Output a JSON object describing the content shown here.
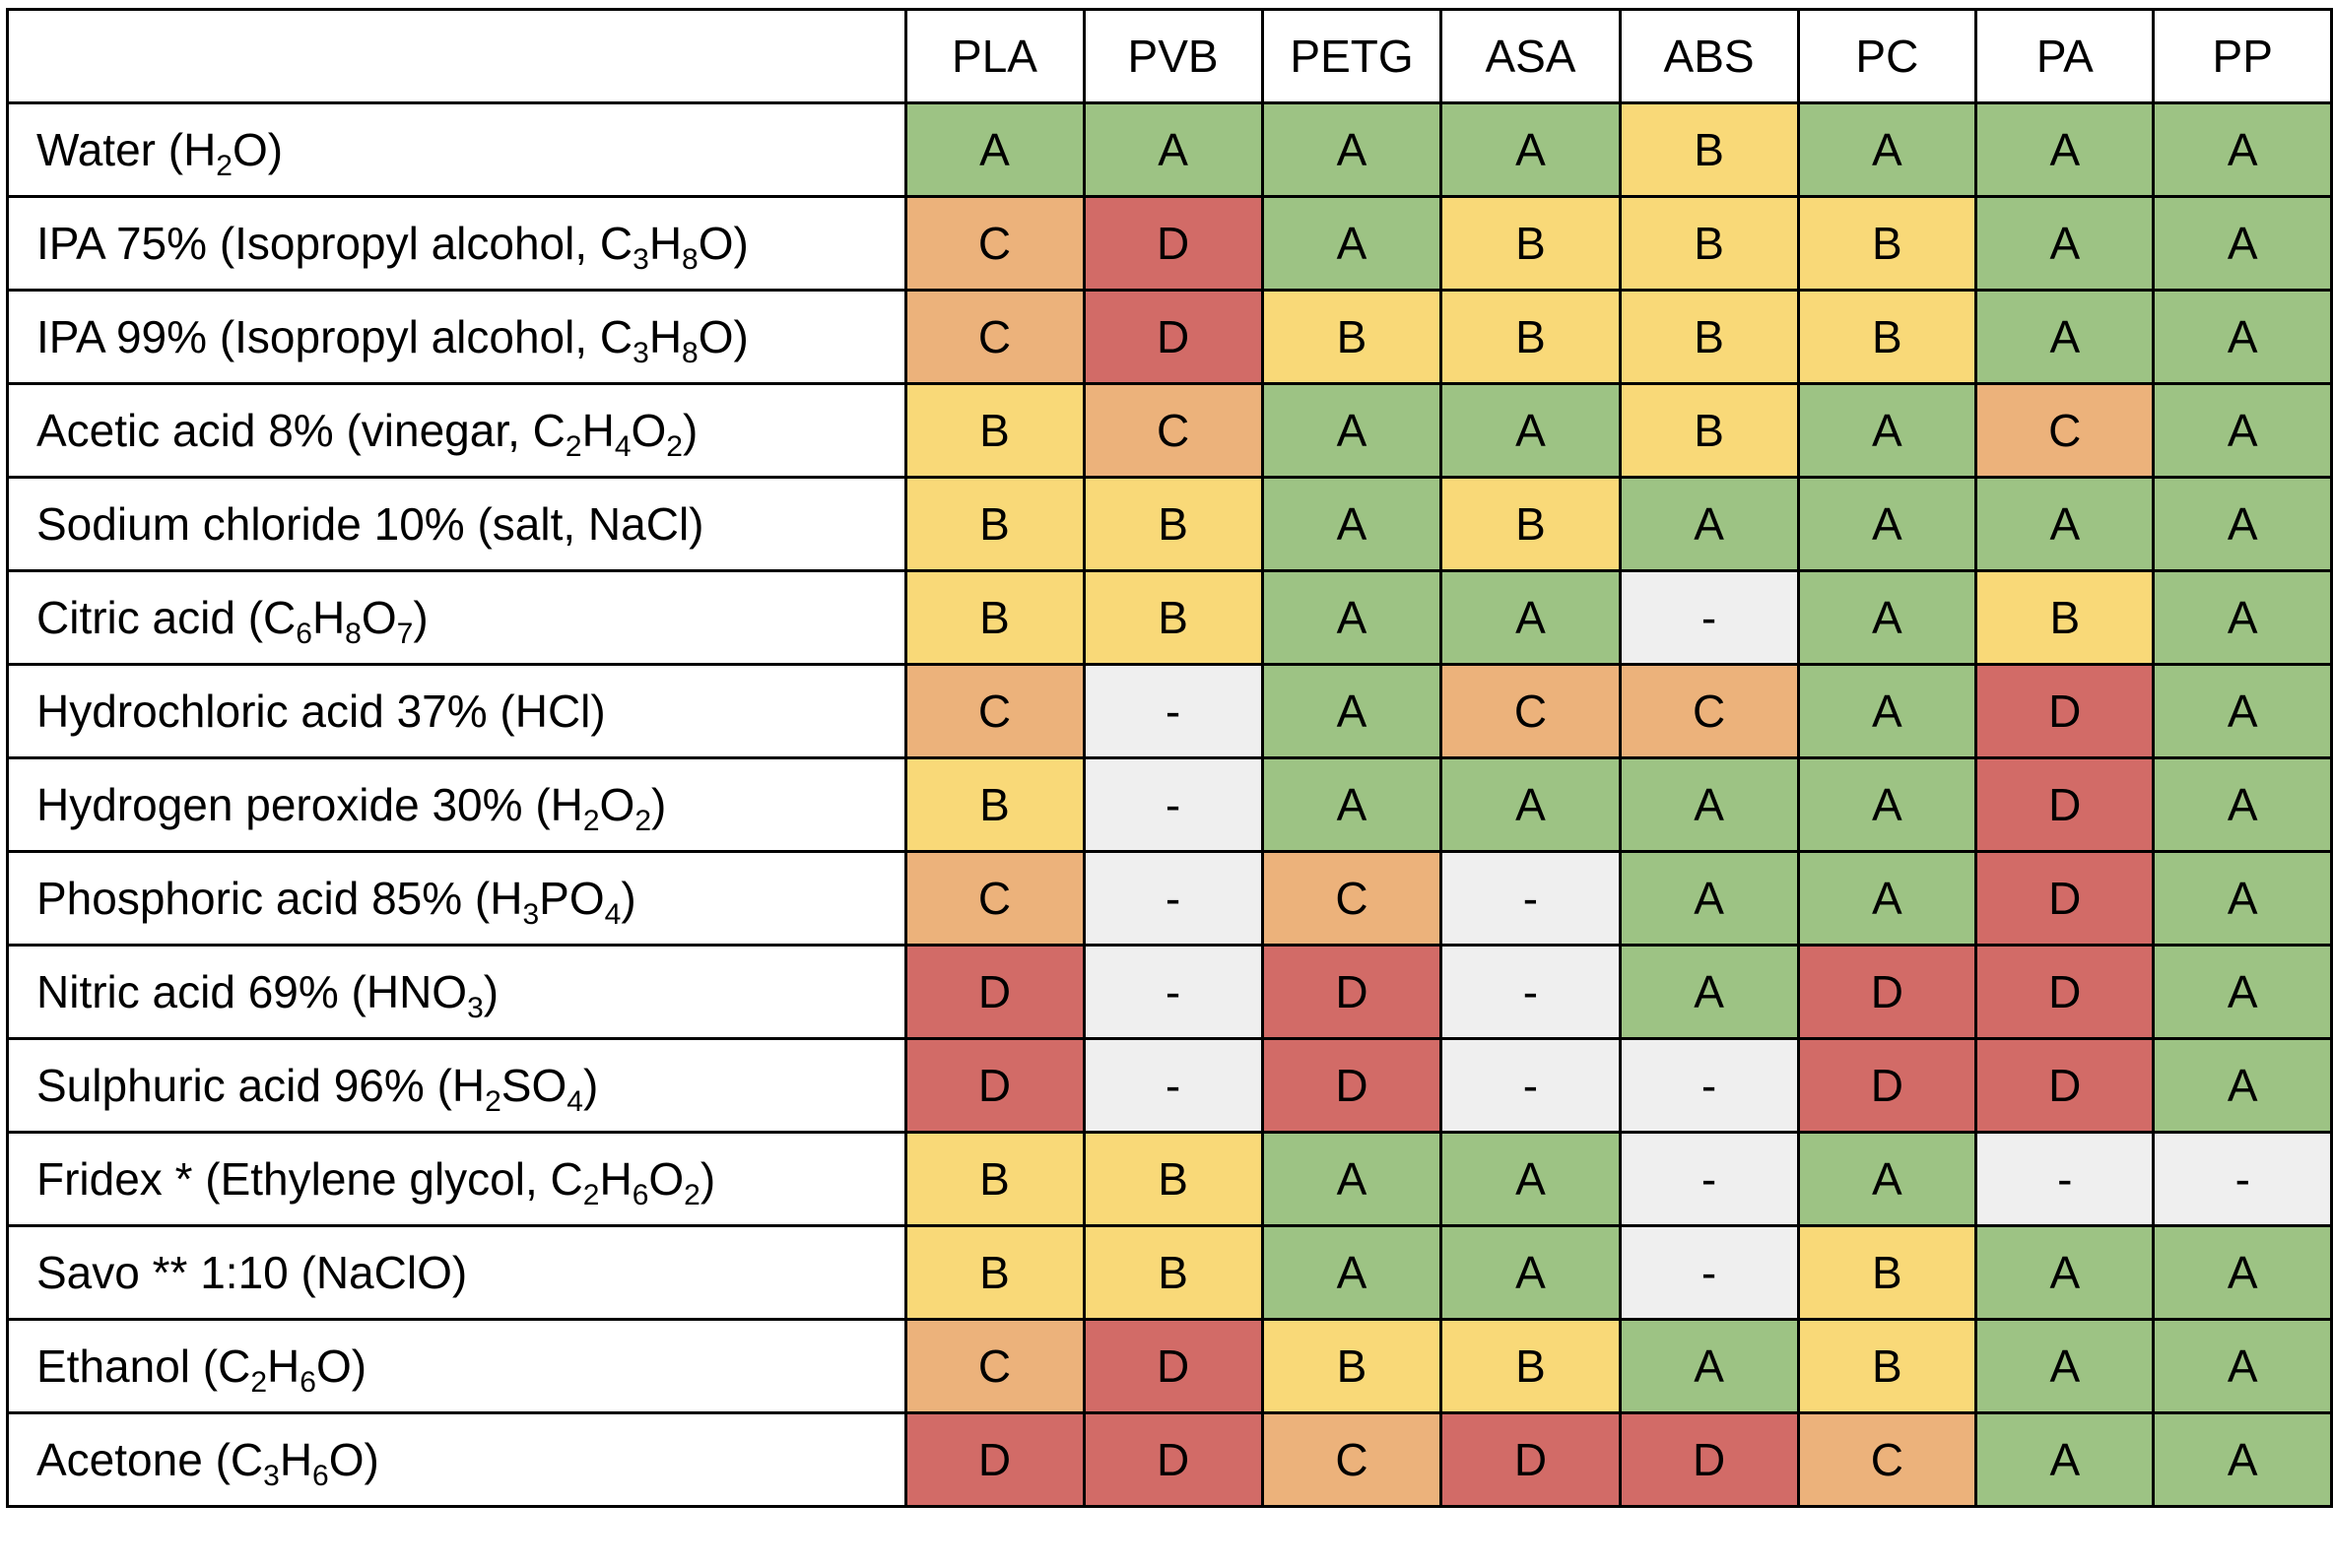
{
  "table": {
    "grade_colors": {
      "A": "#9dc384",
      "B": "#f9d978",
      "C": "#ecb27b",
      "D": "#d26b67",
      "-": "#efefef"
    },
    "header": [
      "PLA",
      "PVB",
      "PETG",
      "ASA",
      "ABS",
      "PC",
      "PA",
      "PP"
    ],
    "rows": [
      {
        "label": [
          "Water (H",
          "2",
          "O)"
        ],
        "cells": [
          "A",
          "A",
          "A",
          "A",
          "B",
          "A",
          "A",
          "A"
        ]
      },
      {
        "label": [
          "IPA 75% (Isopropyl alcohol, C",
          "3",
          "H",
          "8",
          "O)"
        ],
        "cells": [
          "C",
          "D",
          "A",
          "B",
          "B",
          "B",
          "A",
          "A"
        ]
      },
      {
        "label": [
          "IPA 99% (Isopropyl alcohol, C",
          "3",
          "H",
          "8",
          "O)"
        ],
        "cells": [
          "C",
          "D",
          "B",
          "B",
          "B",
          "B",
          "A",
          "A"
        ]
      },
      {
        "label": [
          "Acetic acid 8% (vinegar, C",
          "2",
          "H",
          "4",
          "O",
          "2",
          ")"
        ],
        "cells": [
          "B",
          "C",
          "A",
          "A",
          "B",
          "A",
          "C",
          "A"
        ]
      },
      {
        "label": [
          "Sodium chloride 10% (salt, NaCl)"
        ],
        "cells": [
          "B",
          "B",
          "A",
          "B",
          "A",
          "A",
          "A",
          "A"
        ]
      },
      {
        "label": [
          "Citric acid (C",
          "6",
          "H",
          "8",
          "O",
          "7",
          ")"
        ],
        "cells": [
          "B",
          "B",
          "A",
          "A",
          "-",
          "A",
          "B",
          "A"
        ]
      },
      {
        "label": [
          "Hydrochloric acid 37% (HCl)"
        ],
        "cells": [
          "C",
          "-",
          "A",
          "C",
          "C",
          "A",
          "D",
          "A"
        ]
      },
      {
        "label": [
          "Hydrogen peroxide 30% (H",
          "2",
          "O",
          "2",
          ")"
        ],
        "cells": [
          "B",
          "-",
          "A",
          "A",
          "A",
          "A",
          "D",
          "A"
        ]
      },
      {
        "label": [
          "Phosphoric acid 85% (H",
          "3",
          "PO",
          "4",
          ")"
        ],
        "cells": [
          "C",
          "-",
          "C",
          "-",
          "A",
          "A",
          "D",
          "A"
        ]
      },
      {
        "label": [
          "Nitric acid 69% (HNO",
          "3",
          ")"
        ],
        "cells": [
          "D",
          "-",
          "D",
          "-",
          "A",
          "D",
          "D",
          "A"
        ]
      },
      {
        "label": [
          "Sulphuric acid 96% (H",
          "2",
          "SO",
          "4",
          ")"
        ],
        "cells": [
          "D",
          "-",
          "D",
          "-",
          "-",
          "D",
          "D",
          "A"
        ]
      },
      {
        "label": [
          "Fridex * (Ethylene glycol, C",
          "2",
          "H",
          "6",
          "O",
          "2",
          ")"
        ],
        "cells": [
          "B",
          "B",
          "A",
          "A",
          "-",
          "A",
          "-",
          "-"
        ]
      },
      {
        "label": [
          "Savo ** 1:10 (NaClO)"
        ],
        "cells": [
          "B",
          "B",
          "A",
          "A",
          "-",
          "B",
          "A",
          "A"
        ]
      },
      {
        "label": [
          "Ethanol (C",
          "2",
          "H",
          "6",
          "O)"
        ],
        "cells": [
          "C",
          "D",
          "B",
          "B",
          "A",
          "B",
          "A",
          "A"
        ]
      },
      {
        "label": [
          "Acetone (C",
          "3",
          "H",
          "6",
          "O)"
        ],
        "cells": [
          "D",
          "D",
          "C",
          "D",
          "D",
          "C",
          "A",
          "A"
        ]
      }
    ]
  }
}
